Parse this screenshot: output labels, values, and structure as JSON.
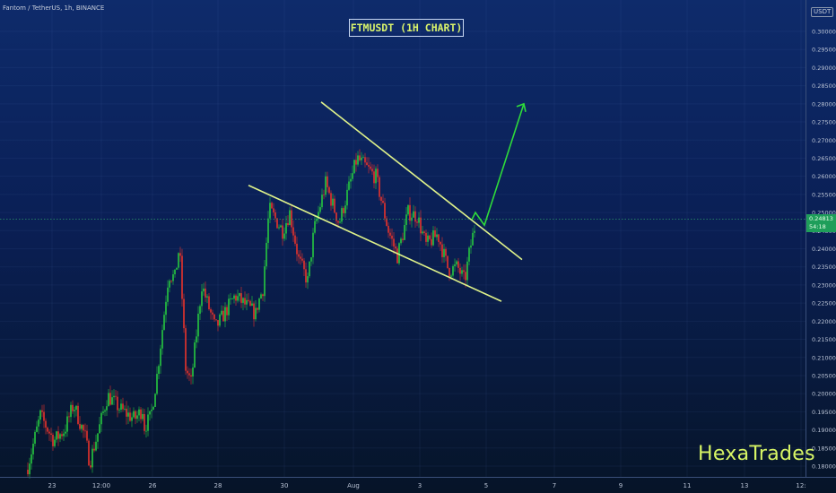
{
  "header": {
    "symbol_info": "Fantom / TetherUS, 1h, BINANCE",
    "title": "FTMUSDT (1H CHART)",
    "currency": "USDT"
  },
  "watermark": "HexaTrades",
  "price_tag": {
    "price": "0.24813",
    "countdown": "54:18"
  },
  "colors": {
    "bull": "#26c940",
    "bear": "#e8332b",
    "trendline": "#dff28a",
    "arrow": "#2edb3a",
    "price_line": "#2c9a6a"
  },
  "chart_data": {
    "type": "candlestick",
    "title": "FTMUSDT (1H CHART)",
    "ylim": [
      0.1777,
      0.3032
    ],
    "y_ticks": [
      "0.30000",
      "0.29500",
      "0.29000",
      "0.28500",
      "0.28000",
      "0.27500",
      "0.27000",
      "0.26500",
      "0.26000",
      "0.25500",
      "0.25000",
      "0.24500",
      "0.24000",
      "0.23500",
      "0.23000",
      "0.22500",
      "0.22000",
      "0.21500",
      "0.21000",
      "0.20500",
      "0.20000",
      "0.19500",
      "0.19000",
      "0.18500",
      "0.18000"
    ],
    "x_ticks": [
      "23",
      "12:00",
      "26",
      "28",
      "30",
      "Aug",
      "3",
      "5",
      "7",
      "9",
      "11",
      "13",
      "12:"
    ],
    "current_price": 0.24813,
    "series_trend": [
      [
        0.179,
        0.194,
        0.187,
        0.19,
        0.197,
        0.188,
        0.181,
        0.19,
        0.1995,
        0.1955,
        0.193,
        0.196
      ],
      [
        0.1905,
        0.1935,
        0.205,
        0.233,
        0.232,
        0.241,
        0.207,
        0.203,
        0.23,
        0.218,
        0.227,
        0.222
      ],
      [
        0.223,
        0.229,
        0.251,
        0.245,
        0.25,
        0.237,
        0.231,
        0.245,
        0.258,
        0.247,
        0.265,
        0.26
      ],
      [
        0.261,
        0.245,
        0.238,
        0.25,
        0.249,
        0.241,
        0.244,
        0.234,
        0.235,
        0.231,
        0.24,
        0.247
      ]
    ],
    "pattern": "falling wedge",
    "upper_trendline": [
      [
        0.2805,
        0.237
      ]
    ],
    "lower_trendline": [
      [
        0.2575,
        0.2255
      ]
    ],
    "projection": [
      0.248,
      0.25,
      0.2465,
      0.28
    ]
  }
}
